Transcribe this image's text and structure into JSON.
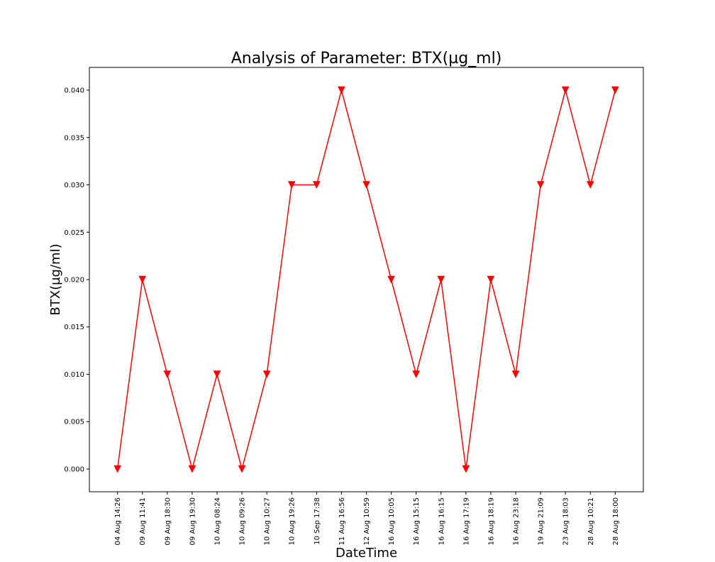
{
  "chart_data": {
    "type": "line",
    "title": "Analysis of Parameter: BTX(µg_ml)",
    "xlabel": "DateTime",
    "ylabel": "BTX(µg/ml)",
    "categories": [
      "04 Aug 14:26",
      "09 Aug 11:41",
      "09 Aug 18:30",
      "09 Aug 19:30",
      "10 Aug 08:24",
      "10 Aug 09:26",
      "10 Aug 10:27",
      "10 Aug 19:26",
      "10 Sep 17:38",
      "11 Aug 16:56",
      "12 Aug 10:59",
      "16 Aug 10:05",
      "16 Aug 15:15",
      "16 Aug 16:15",
      "16 Aug 17:19",
      "16 Aug 18:19",
      "16 Aug 23:18",
      "19 Aug 21:09",
      "23 Aug 18:03",
      "28 Aug 10:21",
      "28 Aug 18:00"
    ],
    "series": [
      {
        "values": [
          0.0,
          0.02,
          0.01,
          0.0,
          0.01,
          0.0,
          0.01,
          0.03,
          0.03,
          0.04,
          0.03,
          0.02,
          0.01,
          0.02,
          0.0,
          0.02,
          0.01,
          0.03,
          0.04,
          0.03,
          0.04
        ],
        "color": "#ff0000",
        "marker": "triangle-down"
      }
    ],
    "ylim": [
      -0.0024,
      0.0424
    ],
    "yticks": [
      0.0,
      0.005,
      0.01,
      0.015,
      0.02,
      0.025,
      0.03,
      0.035,
      0.04
    ],
    "ytick_labels": [
      "0.000",
      "0.005",
      "0.010",
      "0.015",
      "0.020",
      "0.025",
      "0.030",
      "0.035",
      "0.040"
    ],
    "grid": false,
    "legend": "none"
  }
}
